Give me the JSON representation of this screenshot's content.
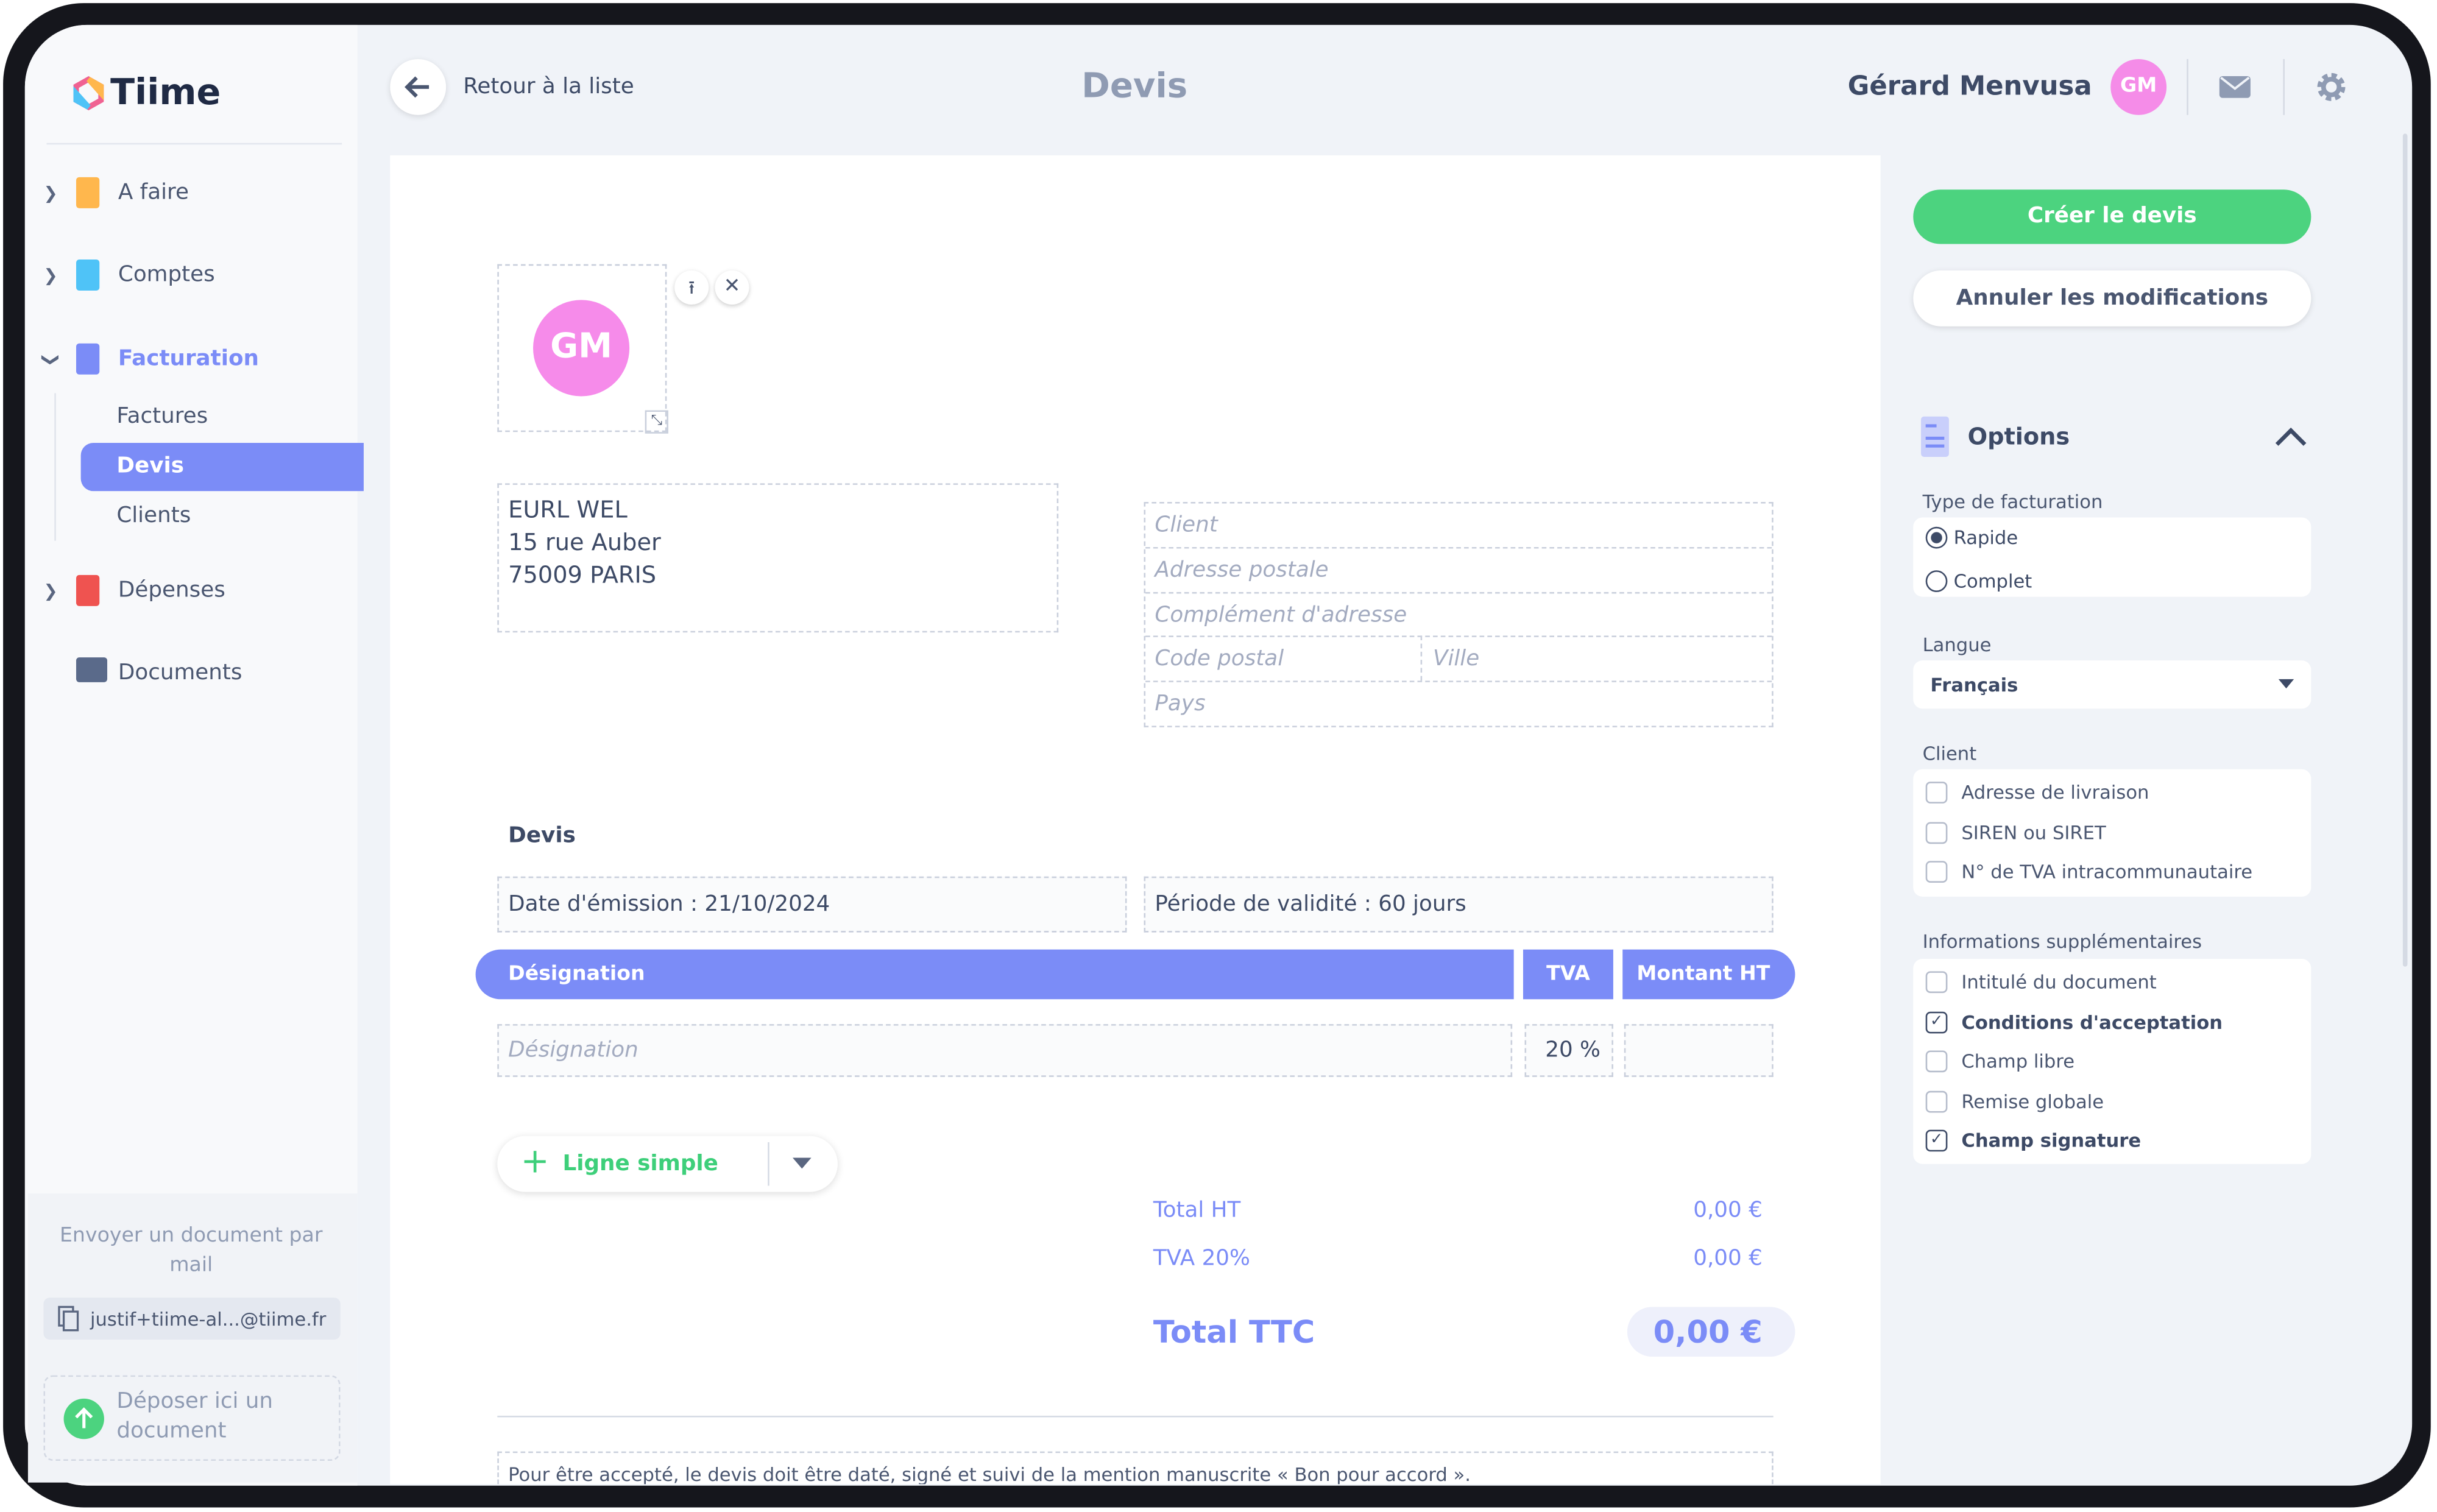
{
  "sidebar": {
    "logo": "Tiime",
    "nav": [
      {
        "label": "A faire"
      },
      {
        "label": "Comptes"
      },
      {
        "label": "Facturation",
        "children": [
          "Factures",
          "Devis",
          "Clients"
        ],
        "active_child": 1
      },
      {
        "label": "Dépenses"
      },
      {
        "label": "Documents"
      }
    ],
    "mail_text": "Envoyer un document par mail",
    "mail_address": "justif+tiime-al...@tiime.fr",
    "drop_text": "Déposer ici un document"
  },
  "header": {
    "back": "Retour à la liste",
    "title": "Devis",
    "user": "Gérard Menvusa",
    "avatar": "GM"
  },
  "document": {
    "logo_initials": "GM",
    "sender": [
      "EURL WEL",
      "15 rue Auber",
      "75009 PARIS"
    ],
    "client_placeholders": {
      "client": "Client",
      "address": "Adresse postale",
      "complement": "Complément d'adresse",
      "postal_code": "Code postal",
      "city": "Ville",
      "country": "Pays"
    },
    "section_title": "Devis",
    "issue_date": "Date d'émission : 21/10/2024",
    "validity": "Période de validité : 60 jours",
    "table": {
      "headers": [
        "Désignation",
        "TVA",
        "Montant HT"
      ],
      "row": {
        "designation_placeholder": "Désignation",
        "vat": "20 %"
      }
    },
    "add_line": "Ligne simple",
    "totals": [
      {
        "label": "Total HT",
        "value": "0,00 €"
      },
      {
        "label": "TVA 20%",
        "value": "0,00 €"
      }
    ],
    "total_ttc": {
      "label": "Total TTC",
      "value": "0,00 €"
    },
    "footer_note": "Pour être accepté, le devis doit être daté, signé et suivi de la mention manuscrite « Bon pour accord »."
  },
  "panel": {
    "create": "Créer le devis",
    "cancel": "Annuler les modifications",
    "options_title": "Options",
    "billing_type": {
      "label": "Type de facturation",
      "options": [
        "Rapide",
        "Complet"
      ],
      "selected": 0
    },
    "language": {
      "label": "Langue",
      "value": "Français"
    },
    "client": {
      "label": "Client",
      "options": [
        {
          "label": "Adresse de livraison",
          "checked": false
        },
        {
          "label": "SIREN ou SIRET",
          "checked": false
        },
        {
          "label": "N° de TVA intracommunautaire",
          "checked": false
        }
      ]
    },
    "extra": {
      "label": "Informations supplémentaires",
      "options": [
        {
          "label": "Intitulé du document",
          "checked": false
        },
        {
          "label": "Conditions d'acceptation",
          "checked": true
        },
        {
          "label": "Champ libre",
          "checked": false
        },
        {
          "label": "Remise globale",
          "checked": false
        },
        {
          "label": "Champ signature",
          "checked": true
        }
      ]
    }
  }
}
